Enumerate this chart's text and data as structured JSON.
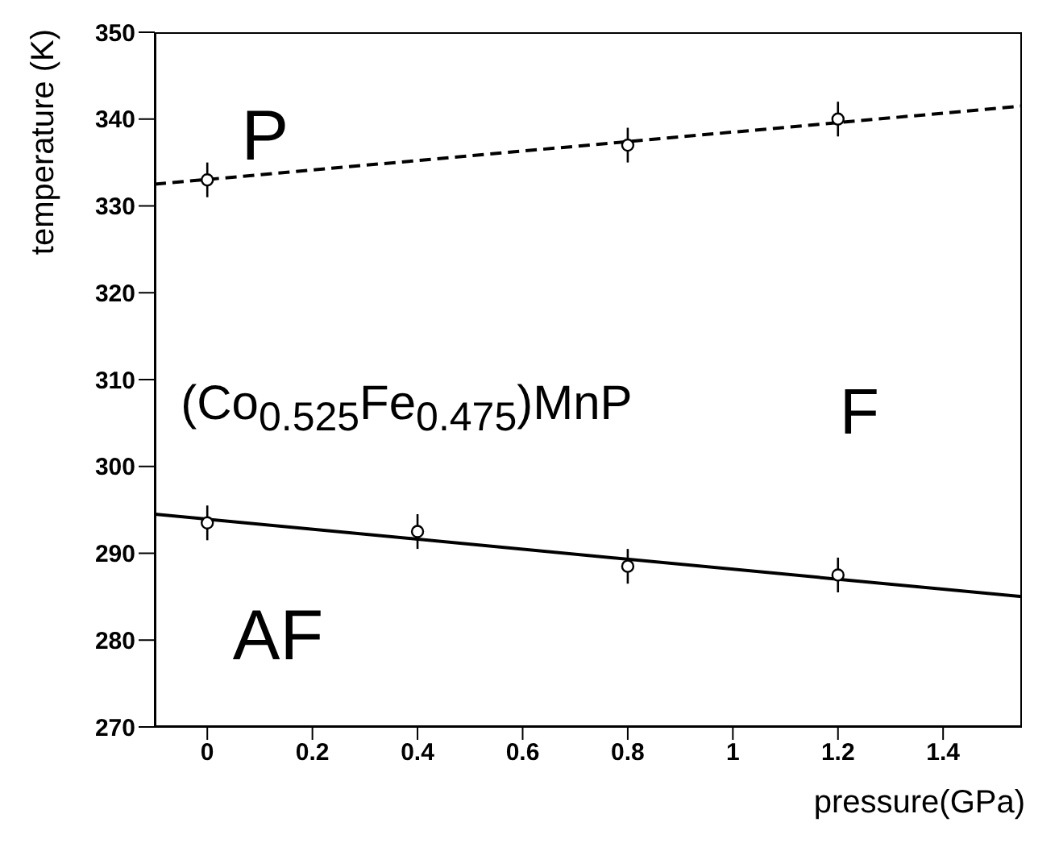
{
  "chart_data": {
    "type": "scatter",
    "xlabel": "pressure(GPa)",
    "ylabel": "temperature (K)",
    "annotations": [
      "P",
      "(Co$_{0.525}$Fe$_{0.475}$)MnP",
      "F",
      "AF"
    ],
    "xlim": [
      -0.1,
      1.55
    ],
    "xticks": [
      0,
      0.2,
      0.4,
      0.6,
      0.8,
      1,
      1.2,
      1.4
    ],
    "ylim": [
      270,
      350
    ],
    "yticks": [
      270,
      280,
      290,
      300,
      310,
      320,
      330,
      340,
      350
    ],
    "grid": false,
    "legend": false,
    "series": [
      {
        "x": [
          0,
          0.8,
          1.2
        ],
        "values": [
          333,
          337,
          340
        ],
        "errors": [
          2,
          2,
          2
        ],
        "color": "#000000",
        "marker": "circle"
      },
      {
        "type": "line",
        "x": [
          -0.1,
          1.55
        ],
        "values": [
          332.5,
          341.5
        ],
        "color": "#000000",
        "line_style": "dashed",
        "marker": "none"
      },
      {
        "x": [
          0,
          0.4,
          0.8,
          1.2
        ],
        "values": [
          293.5,
          292.5,
          288.5,
          287.5
        ],
        "errors": [
          2,
          2,
          2,
          2
        ],
        "color": "#000000",
        "marker": "circle"
      },
      {
        "type": "line",
        "x": [
          -0.1,
          1.55
        ],
        "values": [
          294.5,
          285
        ],
        "color": "#000000",
        "line_style": "solid",
        "marker": "none"
      }
    ]
  }
}
